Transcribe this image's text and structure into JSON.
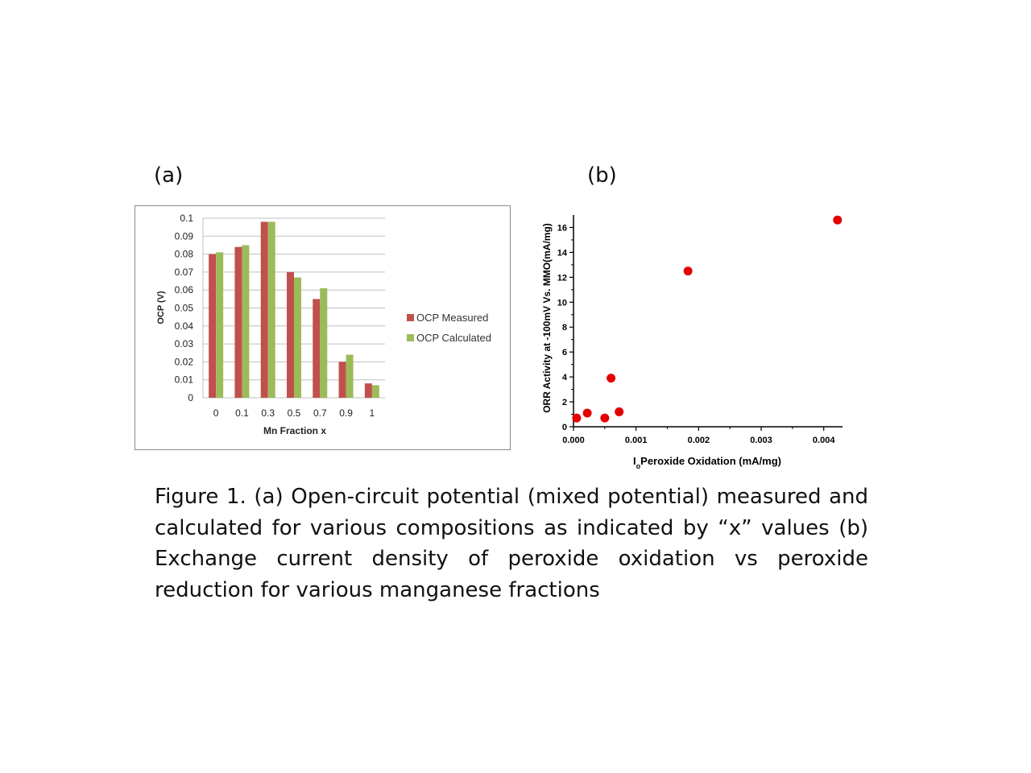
{
  "panels": {
    "a_label": "(a)",
    "b_label": "(b)"
  },
  "chart_data": [
    {
      "type": "bar",
      "categories": [
        "0",
        "0.1",
        "0.3",
        "0.5",
        "0.7",
        "0.9",
        "1"
      ],
      "series": [
        {
          "name": "OCP Measured",
          "color": "#c0504d",
          "values": [
            0.08,
            0.084,
            0.098,
            0.07,
            0.055,
            0.02,
            0.008
          ]
        },
        {
          "name": "OCP Calculated",
          "color": "#9bbb59",
          "values": [
            0.081,
            0.085,
            0.098,
            0.067,
            0.061,
            0.024,
            0.007
          ]
        }
      ],
      "xlabel": "Mn Fraction x",
      "ylabel": "OCP (V)",
      "ylim": [
        0,
        0.1
      ],
      "yticks": [
        "0",
        "0.01",
        "0.02",
        "0.03",
        "0.04",
        "0.05",
        "0.06",
        "0.07",
        "0.08",
        "0.09",
        "0.1"
      ],
      "grid": true,
      "legend_position": "right"
    },
    {
      "type": "scatter",
      "series": [
        {
          "color": "#e50000",
          "points": [
            {
              "x": 5e-05,
              "y": 0.7
            },
            {
              "x": 0.00022,
              "y": 1.1
            },
            {
              "x": 0.0005,
              "y": 0.7
            },
            {
              "x": 0.0006,
              "y": 3.9
            },
            {
              "x": 0.00073,
              "y": 1.2
            },
            {
              "x": 0.00183,
              "y": 12.5
            },
            {
              "x": 0.00422,
              "y": 16.6
            }
          ]
        }
      ],
      "xlabel_prefix": "I",
      "xlabel_subscript": "o",
      "xlabel_rest": "Peroxide Oxidation (mA/mg)",
      "ylabel": "ORR Activity at -100mV Vs. MMO(mA/mg)",
      "xlim": [
        0,
        0.0043
      ],
      "ylim": [
        0,
        17
      ],
      "xticks": [
        0,
        0.001,
        0.002,
        0.003,
        0.004
      ],
      "xtick_labels": [
        "0.000",
        "0.001",
        "0.002",
        "0.003",
        "0.004"
      ],
      "yticks": [
        0,
        2,
        4,
        6,
        8,
        10,
        12,
        14,
        16
      ],
      "yminor": [
        1,
        3,
        5,
        7,
        9,
        11,
        13,
        15
      ],
      "grid": false
    }
  ],
  "caption": "Figure 1. (a) Open-circuit potential (mixed potential) measured and calculated for various compositions as indicated by “x” values (b) Exchange current density of peroxide oxidation vs peroxide reduction for various manganese fractions"
}
